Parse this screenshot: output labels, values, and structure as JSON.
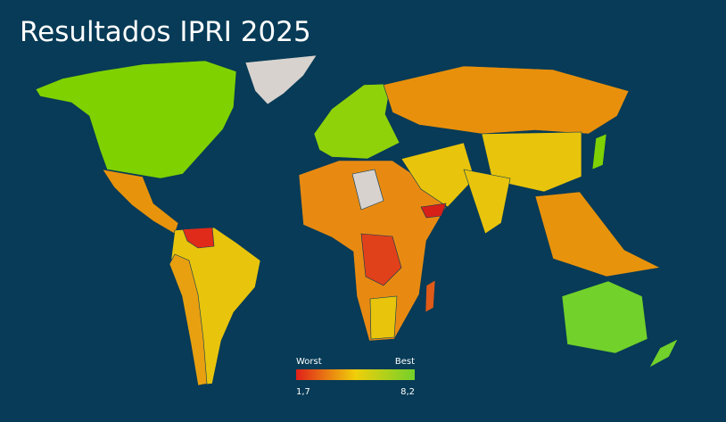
{
  "title": "Resultados IPRI 2025",
  "legend": {
    "low_label": "Worst",
    "high_label": "Best",
    "min": "1,7",
    "max": "8,2"
  }
}
